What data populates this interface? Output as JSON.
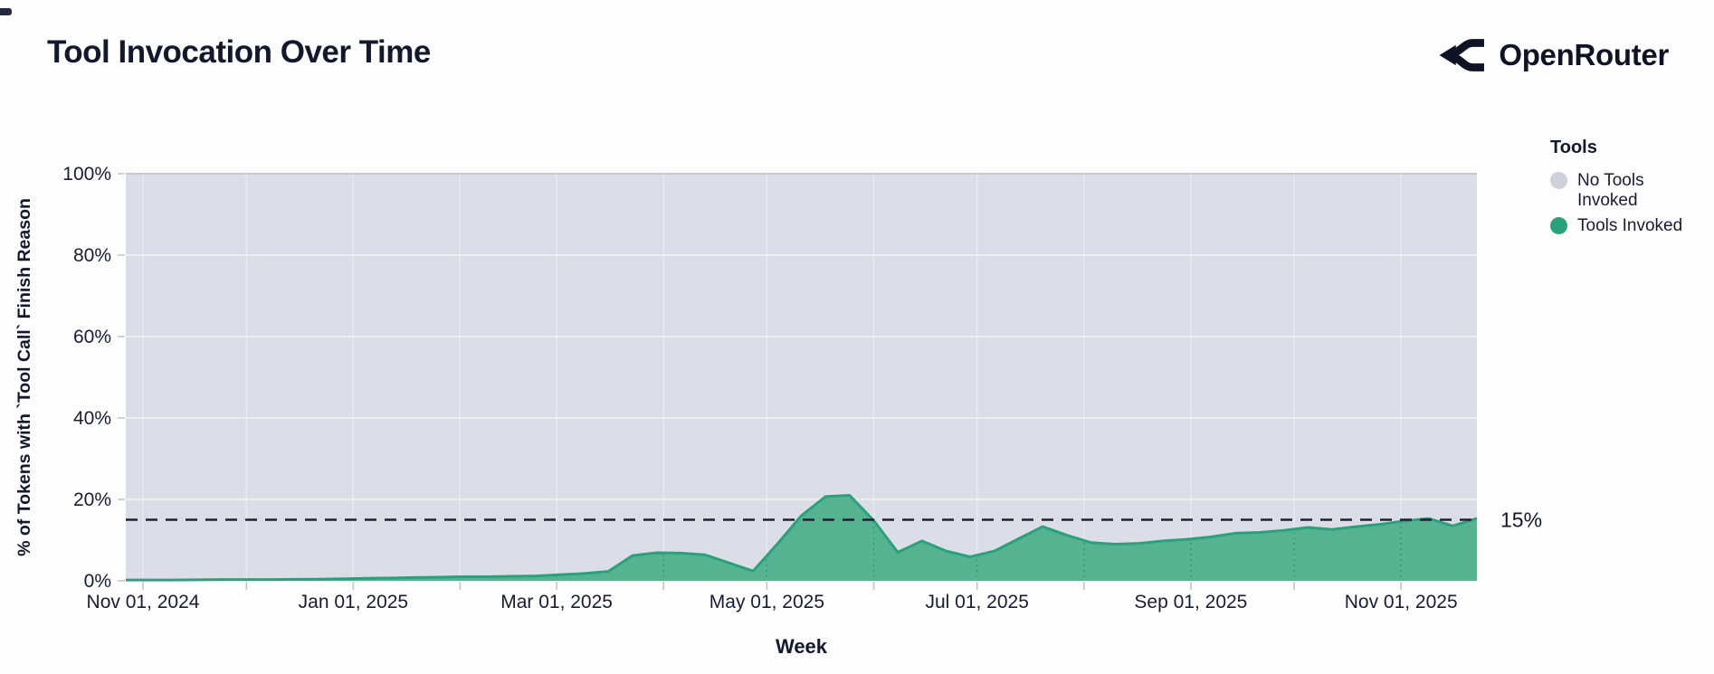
{
  "header": {
    "title": "Tool Invocation Over Time",
    "brand": "OpenRouter"
  },
  "legend": {
    "title": "Tools",
    "items": [
      {
        "label": "No Tools Invoked",
        "color": "#ced0da"
      },
      {
        "label": "Tools Invoked",
        "color": "#2aa17b"
      }
    ]
  },
  "chart_data": {
    "type": "area",
    "stacking": "100% stacked (gray series is remainder to 100%)",
    "title": "Tool Invocation Over Time",
    "xlabel": "Week",
    "ylabel": "% of Tokens with `Tool Call` Finish Reason",
    "ylim": [
      0,
      100
    ],
    "y_ticks": [
      {
        "value": 0,
        "label": "0%"
      },
      {
        "value": 20,
        "label": "20%"
      },
      {
        "value": 40,
        "label": "40%"
      },
      {
        "value": 60,
        "label": "60%"
      },
      {
        "value": 80,
        "label": "80%"
      },
      {
        "value": 100,
        "label": "100%"
      }
    ],
    "x_ticks": [
      {
        "date": "2024-11-01",
        "label": "Nov 01, 2024"
      },
      {
        "date": "2025-01-01",
        "label": "Jan 01, 2025"
      },
      {
        "date": "2025-03-01",
        "label": "Mar 01, 2025"
      },
      {
        "date": "2025-05-01",
        "label": "May 01, 2025"
      },
      {
        "date": "2025-07-01",
        "label": "Jul 01, 2025"
      },
      {
        "date": "2025-09-01",
        "label": "Sep 01, 2025"
      },
      {
        "date": "2025-11-01",
        "label": "Nov 01, 2025"
      }
    ],
    "reference_line": {
      "value": 15,
      "label": "15%"
    },
    "legend_position": "right",
    "grid": true,
    "colors": {
      "no_tools_area": "#dcdee7",
      "tools_fill": "#55b392",
      "tools_stroke": "#2aa17b",
      "reference_line": "#1d2233",
      "axis_text": "#191d30",
      "tick_mark": "#c2c5d1",
      "plot_top_border": "#c6c9d5"
    },
    "series": [
      {
        "name": "Tools Invoked",
        "unit": "percent",
        "x": [
          "2024-10-27",
          "2024-11-03",
          "2024-11-10",
          "2024-11-17",
          "2024-11-24",
          "2024-12-01",
          "2024-12-08",
          "2024-12-15",
          "2024-12-22",
          "2024-12-29",
          "2025-01-05",
          "2025-01-12",
          "2025-01-19",
          "2025-01-26",
          "2025-02-02",
          "2025-02-09",
          "2025-02-16",
          "2025-02-23",
          "2025-03-02",
          "2025-03-09",
          "2025-03-16",
          "2025-03-23",
          "2025-03-30",
          "2025-04-06",
          "2025-04-13",
          "2025-04-20",
          "2025-04-27",
          "2025-05-04",
          "2025-05-11",
          "2025-05-18",
          "2025-05-25",
          "2025-06-01",
          "2025-06-08",
          "2025-06-15",
          "2025-06-22",
          "2025-06-29",
          "2025-07-06",
          "2025-07-13",
          "2025-07-20",
          "2025-07-27",
          "2025-08-03",
          "2025-08-10",
          "2025-08-17",
          "2025-08-24",
          "2025-08-31",
          "2025-09-07",
          "2025-09-14",
          "2025-09-21",
          "2025-09-28",
          "2025-10-05",
          "2025-10-12",
          "2025-10-19",
          "2025-10-26",
          "2025-11-02",
          "2025-11-09",
          "2025-11-16",
          "2025-11-23"
        ],
        "values": [
          0.2,
          0.2,
          0.2,
          0.25,
          0.3,
          0.3,
          0.3,
          0.35,
          0.4,
          0.5,
          0.6,
          0.7,
          0.8,
          0.9,
          1.0,
          1.0,
          1.1,
          1.2,
          1.5,
          1.8,
          2.3,
          6.2,
          6.9,
          6.8,
          6.4,
          4.4,
          2.4,
          9.0,
          16.0,
          20.7,
          21.0,
          14.8,
          7.0,
          9.8,
          7.3,
          5.9,
          7.3,
          10.3,
          13.3,
          11.2,
          9.4,
          9.0,
          9.2,
          9.8,
          10.2,
          10.8,
          11.7,
          11.9,
          12.4,
          13.1,
          12.6,
          13.3,
          13.9,
          14.7,
          15.3,
          13.5,
          15.3
        ]
      },
      {
        "name": "No Tools Invoked",
        "unit": "percent",
        "values_rule": "100 minus Tools Invoked (stacked remainder)"
      }
    ]
  }
}
